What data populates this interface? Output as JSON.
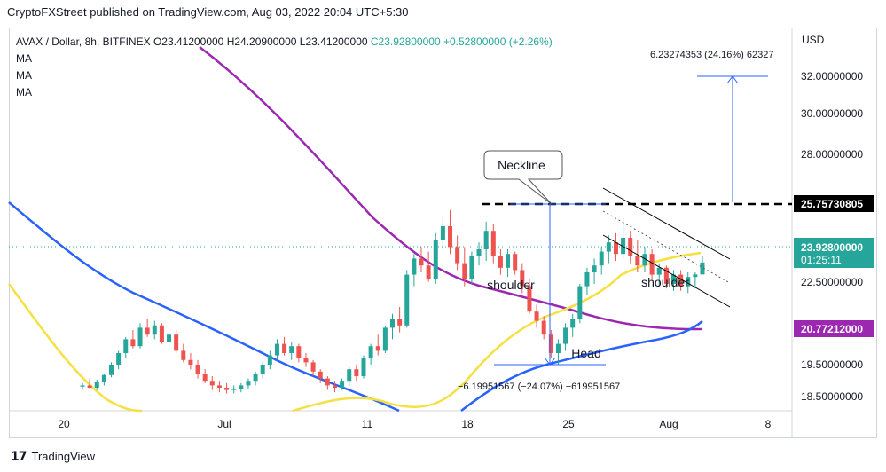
{
  "header": {
    "published": "CryptoFXStreet published on TradingView.com, Aug 03, 2022 20:04 UTC+5:30"
  },
  "legend": {
    "symbol": "AVAX / Dollar, 8h, BITFINEX",
    "open": "O23.41200000",
    "high": "H24.20900000",
    "low": "L23.41200000",
    "close": "C23.92800000",
    "change": "+0.52800000 (+2.26%)",
    "ma_labels": [
      "MA",
      "MA",
      "MA"
    ]
  },
  "axis": {
    "currency": "USD",
    "y_ticks": [
      "32.00000000",
      "30.00000000",
      "28.00000000",
      "22.50000000",
      "19.50000000",
      "18.50000000"
    ],
    "x_ticks": [
      "20",
      "Jul",
      "11",
      "18",
      "25",
      "Aug",
      "8"
    ]
  },
  "price_tags": {
    "neckline": "25.75730805",
    "last_price": "23.92800000",
    "countdown": "01:25:11",
    "ma_value": "20.77212000"
  },
  "annotations": {
    "neckline": "Neckline",
    "left_shoulder": "shoulder",
    "right_shoulder": "shoulder",
    "head": "Head",
    "target": "6.23274353 (24.16%) 62327",
    "depth": "−6.19951567 (−24.07%) −619951567"
  },
  "footer": {
    "brand": "TradingView"
  },
  "colors": {
    "up": "#26a69a",
    "down": "#ef5350",
    "ma_yellow": "#f5e042",
    "ma_blue": "#2962ff",
    "ma_purple": "#9c27b0",
    "ruler": "#2962ff"
  },
  "chart_data": {
    "type": "candlestick",
    "title": "AVAX / Dollar, 8h, BITFINEX",
    "ylabel": "USD",
    "x_labels": [
      "20",
      "Jul",
      "11",
      "18",
      "25",
      "Aug",
      "8"
    ],
    "ylim": [
      18.2,
      33.2
    ],
    "neckline": 25.7573,
    "last_close": 23.928,
    "candles": [
      {
        "o": 18.55,
        "h": 18.7,
        "l": 18.4,
        "c": 18.6
      },
      {
        "o": 18.6,
        "h": 18.9,
        "l": 18.45,
        "c": 18.5
      },
      {
        "o": 18.5,
        "h": 18.85,
        "l": 18.4,
        "c": 18.75
      },
      {
        "o": 18.75,
        "h": 19.1,
        "l": 18.6,
        "c": 19.05
      },
      {
        "o": 19.05,
        "h": 19.6,
        "l": 18.95,
        "c": 19.5
      },
      {
        "o": 19.5,
        "h": 20.1,
        "l": 19.3,
        "c": 20.0
      },
      {
        "o": 20.0,
        "h": 20.7,
        "l": 19.8,
        "c": 20.6
      },
      {
        "o": 20.6,
        "h": 21.0,
        "l": 20.2,
        "c": 20.3
      },
      {
        "o": 20.3,
        "h": 21.3,
        "l": 20.2,
        "c": 21.1
      },
      {
        "o": 21.1,
        "h": 21.5,
        "l": 20.7,
        "c": 20.8
      },
      {
        "o": 20.8,
        "h": 21.4,
        "l": 20.6,
        "c": 21.2
      },
      {
        "o": 21.2,
        "h": 21.3,
        "l": 20.4,
        "c": 20.5
      },
      {
        "o": 20.5,
        "h": 21.0,
        "l": 20.2,
        "c": 20.8
      },
      {
        "o": 20.8,
        "h": 21.0,
        "l": 20.0,
        "c": 20.1
      },
      {
        "o": 20.1,
        "h": 20.4,
        "l": 19.6,
        "c": 19.7
      },
      {
        "o": 19.7,
        "h": 20.0,
        "l": 19.3,
        "c": 19.5
      },
      {
        "o": 19.5,
        "h": 19.7,
        "l": 18.9,
        "c": 19.1
      },
      {
        "o": 19.1,
        "h": 19.3,
        "l": 18.7,
        "c": 18.8
      },
      {
        "o": 18.8,
        "h": 19.0,
        "l": 18.4,
        "c": 18.6
      },
      {
        "o": 18.6,
        "h": 18.8,
        "l": 18.3,
        "c": 18.5
      },
      {
        "o": 18.5,
        "h": 18.7,
        "l": 18.25,
        "c": 18.4
      },
      {
        "o": 18.4,
        "h": 18.6,
        "l": 18.25,
        "c": 18.45
      },
      {
        "o": 18.45,
        "h": 18.7,
        "l": 18.3,
        "c": 18.6
      },
      {
        "o": 18.6,
        "h": 18.9,
        "l": 18.45,
        "c": 18.8
      },
      {
        "o": 18.8,
        "h": 19.2,
        "l": 18.6,
        "c": 19.1
      },
      {
        "o": 19.1,
        "h": 19.6,
        "l": 18.9,
        "c": 19.5
      },
      {
        "o": 19.5,
        "h": 20.1,
        "l": 19.3,
        "c": 19.9
      },
      {
        "o": 19.9,
        "h": 20.6,
        "l": 19.7,
        "c": 20.4
      },
      {
        "o": 20.4,
        "h": 20.7,
        "l": 19.9,
        "c": 20.0
      },
      {
        "o": 20.0,
        "h": 20.5,
        "l": 19.7,
        "c": 20.3
      },
      {
        "o": 20.3,
        "h": 20.4,
        "l": 19.6,
        "c": 19.8
      },
      {
        "o": 19.8,
        "h": 20.0,
        "l": 19.4,
        "c": 19.6
      },
      {
        "o": 19.6,
        "h": 19.7,
        "l": 19.0,
        "c": 19.2
      },
      {
        "o": 19.2,
        "h": 19.3,
        "l": 18.7,
        "c": 18.9
      },
      {
        "o": 18.9,
        "h": 19.0,
        "l": 18.4,
        "c": 18.6
      },
      {
        "o": 18.6,
        "h": 18.8,
        "l": 18.3,
        "c": 18.5
      },
      {
        "o": 18.5,
        "h": 18.9,
        "l": 18.4,
        "c": 18.8
      },
      {
        "o": 18.8,
        "h": 19.4,
        "l": 18.6,
        "c": 19.3
      },
      {
        "o": 19.3,
        "h": 19.5,
        "l": 18.8,
        "c": 19.0
      },
      {
        "o": 19.0,
        "h": 19.9,
        "l": 18.9,
        "c": 19.8
      },
      {
        "o": 19.8,
        "h": 20.4,
        "l": 19.5,
        "c": 20.3
      },
      {
        "o": 20.3,
        "h": 20.8,
        "l": 19.9,
        "c": 20.1
      },
      {
        "o": 20.1,
        "h": 21.2,
        "l": 20.0,
        "c": 21.1
      },
      {
        "o": 21.1,
        "h": 21.7,
        "l": 20.6,
        "c": 21.5
      },
      {
        "o": 21.5,
        "h": 22.0,
        "l": 20.9,
        "c": 21.2
      },
      {
        "o": 21.2,
        "h": 23.6,
        "l": 21.1,
        "c": 23.4
      },
      {
        "o": 23.4,
        "h": 24.3,
        "l": 22.9,
        "c": 24.1
      },
      {
        "o": 24.1,
        "h": 24.6,
        "l": 23.5,
        "c": 23.8
      },
      {
        "o": 23.8,
        "h": 24.4,
        "l": 23.1,
        "c": 23.2
      },
      {
        "o": 23.2,
        "h": 25.2,
        "l": 23.0,
        "c": 24.9
      },
      {
        "o": 24.9,
        "h": 25.9,
        "l": 24.5,
        "c": 25.5
      },
      {
        "o": 25.5,
        "h": 26.2,
        "l": 24.3,
        "c": 24.6
      },
      {
        "o": 24.6,
        "h": 25.1,
        "l": 23.6,
        "c": 23.9
      },
      {
        "o": 23.9,
        "h": 24.6,
        "l": 22.9,
        "c": 23.2
      },
      {
        "o": 23.2,
        "h": 24.4,
        "l": 23.0,
        "c": 24.2
      },
      {
        "o": 24.2,
        "h": 24.8,
        "l": 23.8,
        "c": 24.5
      },
      {
        "o": 24.5,
        "h": 25.7,
        "l": 24.0,
        "c": 25.3
      },
      {
        "o": 25.3,
        "h": 25.6,
        "l": 23.9,
        "c": 24.2
      },
      {
        "o": 24.2,
        "h": 24.5,
        "l": 23.4,
        "c": 23.7
      },
      {
        "o": 23.7,
        "h": 24.5,
        "l": 23.3,
        "c": 24.3
      },
      {
        "o": 24.3,
        "h": 24.4,
        "l": 23.4,
        "c": 23.6
      },
      {
        "o": 23.6,
        "h": 23.9,
        "l": 22.6,
        "c": 22.9
      },
      {
        "o": 22.9,
        "h": 23.2,
        "l": 21.7,
        "c": 21.8
      },
      {
        "o": 21.8,
        "h": 22.1,
        "l": 21.1,
        "c": 21.4
      },
      {
        "o": 21.4,
        "h": 21.6,
        "l": 20.6,
        "c": 20.8
      },
      {
        "o": 20.8,
        "h": 21.0,
        "l": 19.8,
        "c": 20.0
      },
      {
        "o": 20.0,
        "h": 20.6,
        "l": 19.5,
        "c": 20.4
      },
      {
        "o": 20.4,
        "h": 21.3,
        "l": 20.1,
        "c": 21.1
      },
      {
        "o": 21.1,
        "h": 21.7,
        "l": 20.7,
        "c": 21.5
      },
      {
        "o": 21.5,
        "h": 23.0,
        "l": 21.3,
        "c": 22.9
      },
      {
        "o": 22.9,
        "h": 23.7,
        "l": 22.5,
        "c": 23.5
      },
      {
        "o": 23.5,
        "h": 24.1,
        "l": 23.0,
        "c": 23.8
      },
      {
        "o": 23.8,
        "h": 24.6,
        "l": 23.4,
        "c": 24.4
      },
      {
        "o": 24.4,
        "h": 25.1,
        "l": 23.9,
        "c": 24.8
      },
      {
        "o": 24.8,
        "h": 25.2,
        "l": 24.0,
        "c": 24.3
      },
      {
        "o": 24.3,
        "h": 25.9,
        "l": 24.1,
        "c": 25.0
      },
      {
        "o": 25.0,
        "h": 25.3,
        "l": 23.9,
        "c": 24.2
      },
      {
        "o": 24.2,
        "h": 24.9,
        "l": 23.5,
        "c": 23.8
      },
      {
        "o": 23.8,
        "h": 24.6,
        "l": 23.5,
        "c": 24.3
      },
      {
        "o": 24.3,
        "h": 24.5,
        "l": 23.2,
        "c": 23.4
      },
      {
        "o": 23.4,
        "h": 23.9,
        "l": 22.9,
        "c": 23.7
      },
      {
        "o": 23.7,
        "h": 23.8,
        "l": 22.8,
        "c": 23.0
      },
      {
        "o": 23.0,
        "h": 23.6,
        "l": 22.7,
        "c": 23.4
      },
      {
        "o": 23.4,
        "h": 23.6,
        "l": 22.7,
        "c": 22.9
      },
      {
        "o": 22.9,
        "h": 23.5,
        "l": 22.6,
        "c": 23.3
      },
      {
        "o": 23.3,
        "h": 23.5,
        "l": 22.8,
        "c": 23.41
      },
      {
        "o": 23.41,
        "h": 24.21,
        "l": 23.41,
        "c": 23.93
      }
    ]
  }
}
